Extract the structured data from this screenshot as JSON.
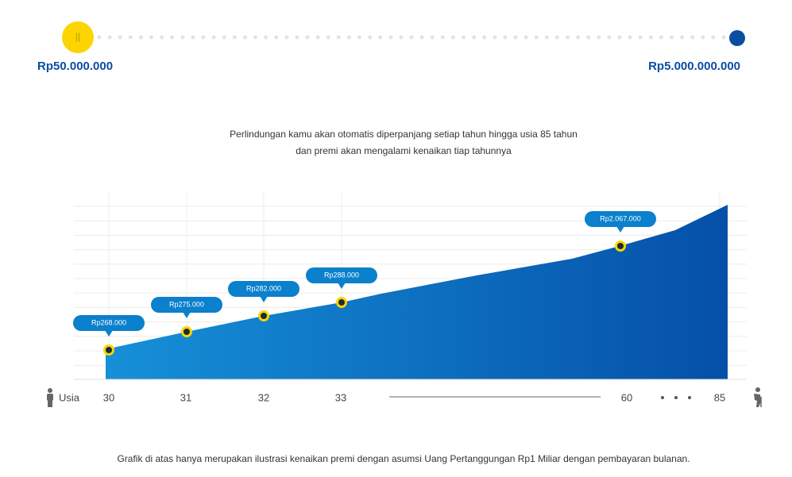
{
  "slider": {
    "min_label": "Rp50.000.000",
    "max_label": "Rp5.000.000.000"
  },
  "description": [
    "Perlindungan kamu akan otomatis diperpanjang setiap tahun hingga usia 85 tahun",
    "dan premi akan mengalami kenaikan tiap tahunnya"
  ],
  "chart": {
    "axis_label": "Usia",
    "ages": [
      "30",
      "31",
      "32",
      "33",
      "60",
      "85"
    ],
    "premium_labels": [
      "Rp268.000",
      "Rp275.000",
      "Rp282.000",
      "Rp288.000",
      "Rp2.067.000"
    ]
  },
  "footnote": "Grafik di atas hanya merupakan ilustrasi kenaikan premi dengan asumsi Uang Pertanggungan Rp1 Miliar dengan pembayaran bulanan."
}
